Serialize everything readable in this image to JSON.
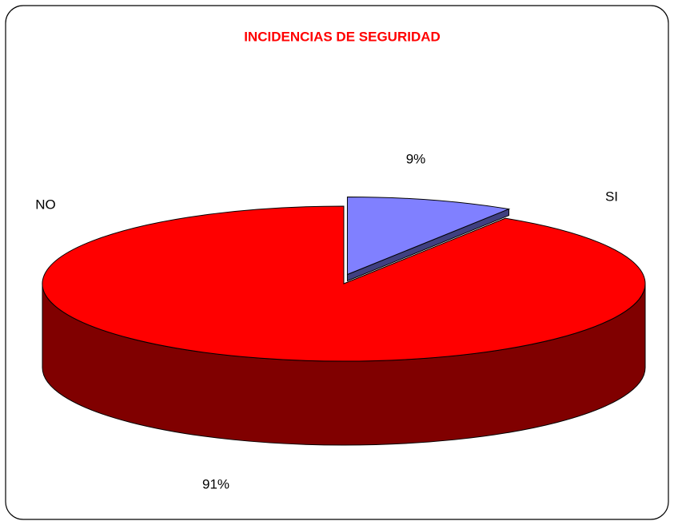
{
  "chart_data": {
    "type": "pie3d",
    "title": "INCIDENCIAS DE SEGURIDAD",
    "categories": [
      "SI",
      "NO"
    ],
    "values": [
      9,
      91
    ],
    "value_labels": [
      "9%",
      "91%"
    ],
    "colors": [
      "#8080ff",
      "#ff0000"
    ]
  }
}
